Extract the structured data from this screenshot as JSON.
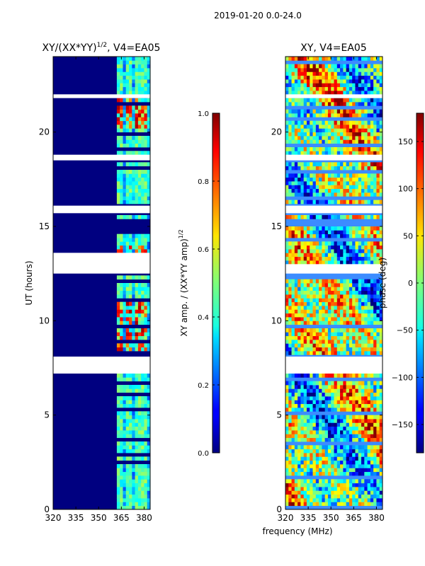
{
  "suptitle": "2019-01-20 0.0-24.0",
  "xlabel_shared": "frequency (MHz)",
  "chart_data": [
    {
      "type": "heatmap",
      "title_base": "XY/(XX*YY)",
      "title_sup": "1/2",
      "title_suffix": ", V4=EA05",
      "ylabel": "UT (hours)",
      "xlim": [
        320,
        384
      ],
      "ylim": [
        0,
        24
      ],
      "xticks": [
        320,
        335,
        350,
        365,
        380
      ],
      "yticks": [
        0,
        5,
        10,
        15,
        20
      ],
      "colorbar": {
        "label_base": "XY amp. / (XX*YY amp)",
        "label_sup": "1/2",
        "range": [
          0.0,
          1.0
        ],
        "ticks": [
          "0.0",
          "0.2",
          "0.4",
          "0.6",
          "0.8",
          "1.0"
        ],
        "tick_values": [
          0.0,
          0.2,
          0.4,
          0.6,
          0.8,
          1.0
        ],
        "colormap": "jet"
      },
      "masked_hour_ranges": [
        [
          7.2,
          8.1
        ],
        [
          12.5,
          13.6
        ],
        [
          15.7,
          16.1
        ],
        [
          18.5,
          18.8
        ],
        [
          21.8,
          22.0
        ]
      ],
      "high_value_hour_ranges": [
        [
          8.2,
          11.2
        ],
        [
          13.0,
          14.0
        ],
        [
          20.2,
          21.8
        ]
      ],
      "bright_channel_ranges_mhz": [
        [
          362,
          366
        ],
        [
          368,
          372
        ],
        [
          374,
          378
        ],
        [
          379,
          382
        ]
      ],
      "values_description": "normalized amplitude, near 0 below ~362 MHz, elevated 362-382 MHz"
    },
    {
      "type": "heatmap",
      "title": "XY, V4=EA05",
      "xlim": [
        320,
        384
      ],
      "ylim": [
        0,
        24
      ],
      "xticks": [
        320,
        335,
        350,
        365,
        380
      ],
      "yticks": [
        0,
        5,
        10,
        15,
        20
      ],
      "colorbar": {
        "label": "phase (deg)",
        "range": [
          -180,
          180
        ],
        "ticks": [
          "-150",
          "-100",
          "-50",
          "0",
          "50",
          "100",
          "150"
        ],
        "tick_values": [
          -150,
          -100,
          -50,
          0,
          50,
          100,
          150
        ],
        "colormap": "jet"
      },
      "masked_hour_ranges": [
        [
          7.2,
          8.1
        ],
        [
          12.5,
          13.0
        ],
        [
          15.7,
          16.1
        ],
        [
          18.5,
          18.8
        ],
        [
          21.8,
          22.0
        ]
      ],
      "values_description": "phase in degrees, noisy across full band"
    }
  ]
}
